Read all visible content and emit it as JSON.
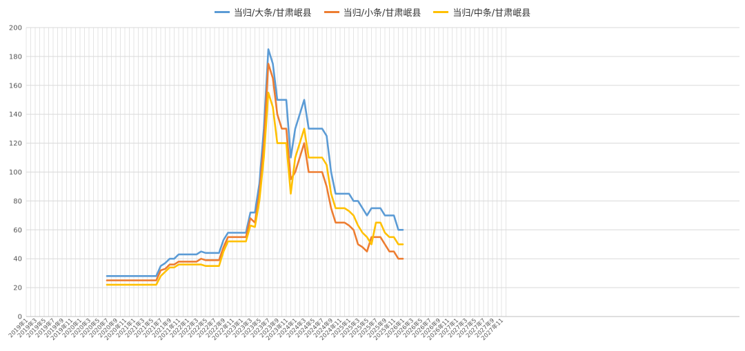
{
  "chart_data": {
    "type": "line",
    "title": "",
    "xlabel": "",
    "ylabel": "",
    "ylim": [
      0,
      200
    ],
    "y_ticks": [
      0,
      20,
      40,
      60,
      80,
      100,
      120,
      140,
      160,
      180,
      200
    ],
    "x_tick_labels": [
      "2019年1",
      "2019年3",
      "2019年5",
      "2019年7",
      "2019年9",
      "2019年11",
      "2020年1",
      "2020年3",
      "2020年5",
      "2020年7",
      "2020年9",
      "2020年11",
      "2021年1",
      "2021年3",
      "2021年5",
      "2021年7",
      "2021年9",
      "2021年11",
      "2022年1",
      "2022年3",
      "2022年5",
      "2022年7",
      "2022年9",
      "2022年11",
      "2023年1",
      "2023年3",
      "2023年5",
      "2023年7",
      "2023年9",
      "2023年11",
      "2024年1",
      "2024年3",
      "2024年5",
      "2024年7",
      "2024年9",
      "2024年11",
      "2025年1",
      "2025年3",
      "2025年5",
      "2025年7",
      "2025年9",
      "2025年11",
      "2026年1",
      "2026年3",
      "2026年5",
      "2026年7",
      "2026年9",
      "2026年11",
      "2027年1",
      "2027年3",
      "2027年5",
      "2027年7",
      "2027年9",
      "2027年11"
    ],
    "legend_position": "top",
    "grid": true,
    "series": [
      {
        "name": "当归/大条/甘肃岷县",
        "color": "#5B9BD5",
        "points": [
          [
            "2020-07",
            28
          ],
          [
            "2020-08",
            28
          ],
          [
            "2020-09",
            28
          ],
          [
            "2020-10",
            28
          ],
          [
            "2020-11",
            28
          ],
          [
            "2020-12",
            28
          ],
          [
            "2021-01",
            28
          ],
          [
            "2021-02",
            28
          ],
          [
            "2021-03",
            28
          ],
          [
            "2021-04",
            28
          ],
          [
            "2021-05",
            28
          ],
          [
            "2021-06",
            28
          ],
          [
            "2021-07",
            35
          ],
          [
            "2021-08",
            37
          ],
          [
            "2021-09",
            40
          ],
          [
            "2021-10",
            40
          ],
          [
            "2021-11",
            43
          ],
          [
            "2021-12",
            43
          ],
          [
            "2022-01",
            43
          ],
          [
            "2022-02",
            43
          ],
          [
            "2022-03",
            43
          ],
          [
            "2022-04",
            45
          ],
          [
            "2022-05",
            44
          ],
          [
            "2022-06",
            44
          ],
          [
            "2022-07",
            44
          ],
          [
            "2022-08",
            44
          ],
          [
            "2022-09",
            53
          ],
          [
            "2022-10",
            58
          ],
          [
            "2022-11",
            58
          ],
          [
            "2022-12",
            58
          ],
          [
            "2023-01",
            58
          ],
          [
            "2023-02",
            58
          ],
          [
            "2023-03",
            72
          ],
          [
            "2023-04",
            72
          ],
          [
            "2023-05",
            92
          ],
          [
            "2023-06",
            130
          ],
          [
            "2023-07",
            185
          ],
          [
            "2023-08",
            175
          ],
          [
            "2023-09",
            150
          ],
          [
            "2023-10",
            150
          ],
          [
            "2023-11",
            150
          ],
          [
            "2023-12",
            110
          ],
          [
            "2024-01",
            130
          ],
          [
            "2024-02",
            140
          ],
          [
            "2024-03",
            150
          ],
          [
            "2024-04",
            130
          ],
          [
            "2024-05",
            130
          ],
          [
            "2024-06",
            130
          ],
          [
            "2024-07",
            130
          ],
          [
            "2024-08",
            125
          ],
          [
            "2024-09",
            100
          ],
          [
            "2024-10",
            85
          ],
          [
            "2024-11",
            85
          ],
          [
            "2024-12",
            85
          ],
          [
            "2025-01",
            85
          ],
          [
            "2025-02",
            80
          ],
          [
            "2025-03",
            80
          ],
          [
            "2025-04",
            75
          ],
          [
            "2025-05",
            70
          ],
          [
            "2025-06",
            75
          ],
          [
            "2025-07",
            75
          ],
          [
            "2025-08",
            75
          ],
          [
            "2025-09",
            70
          ],
          [
            "2025-10",
            70
          ],
          [
            "2025-11",
            70
          ],
          [
            "2025-12",
            60
          ],
          [
            "2026-01",
            60
          ]
        ]
      },
      {
        "name": "当归/小条/甘肃岷县",
        "color": "#ED7D31",
        "points": [
          [
            "2020-07",
            25
          ],
          [
            "2020-08",
            25
          ],
          [
            "2020-09",
            25
          ],
          [
            "2020-10",
            25
          ],
          [
            "2020-11",
            25
          ],
          [
            "2020-12",
            25
          ],
          [
            "2021-01",
            25
          ],
          [
            "2021-02",
            25
          ],
          [
            "2021-03",
            25
          ],
          [
            "2021-04",
            25
          ],
          [
            "2021-05",
            25
          ],
          [
            "2021-06",
            25
          ],
          [
            "2021-07",
            32
          ],
          [
            "2021-08",
            33
          ],
          [
            "2021-09",
            36
          ],
          [
            "2021-10",
            36
          ],
          [
            "2021-11",
            38
          ],
          [
            "2021-12",
            38
          ],
          [
            "2022-01",
            38
          ],
          [
            "2022-02",
            38
          ],
          [
            "2022-03",
            38
          ],
          [
            "2022-04",
            40
          ],
          [
            "2022-05",
            39
          ],
          [
            "2022-06",
            39
          ],
          [
            "2022-07",
            39
          ],
          [
            "2022-08",
            39
          ],
          [
            "2022-09",
            48
          ],
          [
            "2022-10",
            55
          ],
          [
            "2022-11",
            55
          ],
          [
            "2022-12",
            55
          ],
          [
            "2023-01",
            55
          ],
          [
            "2023-02",
            55
          ],
          [
            "2023-03",
            68
          ],
          [
            "2023-04",
            65
          ],
          [
            "2023-05",
            85
          ],
          [
            "2023-06",
            120
          ],
          [
            "2023-07",
            175
          ],
          [
            "2023-08",
            165
          ],
          [
            "2023-09",
            140
          ],
          [
            "2023-10",
            130
          ],
          [
            "2023-11",
            130
          ],
          [
            "2023-12",
            95
          ],
          [
            "2024-01",
            100
          ],
          [
            "2024-02",
            110
          ],
          [
            "2024-03",
            120
          ],
          [
            "2024-04",
            100
          ],
          [
            "2024-05",
            100
          ],
          [
            "2024-06",
            100
          ],
          [
            "2024-07",
            100
          ],
          [
            "2024-08",
            90
          ],
          [
            "2024-09",
            75
          ],
          [
            "2024-10",
            65
          ],
          [
            "2024-11",
            65
          ],
          [
            "2024-12",
            65
          ],
          [
            "2025-01",
            63
          ],
          [
            "2025-02",
            60
          ],
          [
            "2025-03",
            50
          ],
          [
            "2025-04",
            48
          ],
          [
            "2025-05",
            45
          ],
          [
            "2025-06",
            55
          ],
          [
            "2025-07",
            55
          ],
          [
            "2025-08",
            55
          ],
          [
            "2025-09",
            50
          ],
          [
            "2025-10",
            45
          ],
          [
            "2025-11",
            45
          ],
          [
            "2025-12",
            40
          ],
          [
            "2026-01",
            40
          ]
        ]
      },
      {
        "name": "当归/中条/甘肃岷县",
        "color": "#FFC000",
        "points": [
          [
            "2020-07",
            22
          ],
          [
            "2020-08",
            22
          ],
          [
            "2020-09",
            22
          ],
          [
            "2020-10",
            22
          ],
          [
            "2020-11",
            22
          ],
          [
            "2020-12",
            22
          ],
          [
            "2021-01",
            22
          ],
          [
            "2021-02",
            22
          ],
          [
            "2021-03",
            22
          ],
          [
            "2021-04",
            22
          ],
          [
            "2021-05",
            22
          ],
          [
            "2021-06",
            22
          ],
          [
            "2021-07",
            28
          ],
          [
            "2021-08",
            31
          ],
          [
            "2021-09",
            34
          ],
          [
            "2021-10",
            34
          ],
          [
            "2021-11",
            36
          ],
          [
            "2021-12",
            36
          ],
          [
            "2022-01",
            36
          ],
          [
            "2022-02",
            36
          ],
          [
            "2022-03",
            36
          ],
          [
            "2022-04",
            36
          ],
          [
            "2022-05",
            35
          ],
          [
            "2022-06",
            35
          ],
          [
            "2022-07",
            35
          ],
          [
            "2022-08",
            35
          ],
          [
            "2022-09",
            45
          ],
          [
            "2022-10",
            52
          ],
          [
            "2022-11",
            52
          ],
          [
            "2022-12",
            52
          ],
          [
            "2023-01",
            52
          ],
          [
            "2023-02",
            52
          ],
          [
            "2023-03",
            63
          ],
          [
            "2023-04",
            62
          ],
          [
            "2023-05",
            80
          ],
          [
            "2023-06",
            110
          ],
          [
            "2023-07",
            155
          ],
          [
            "2023-08",
            145
          ],
          [
            "2023-09",
            120
          ],
          [
            "2023-10",
            120
          ],
          [
            "2023-11",
            120
          ],
          [
            "2023-12",
            85
          ],
          [
            "2024-01",
            110
          ],
          [
            "2024-02",
            120
          ],
          [
            "2024-03",
            130
          ],
          [
            "2024-04",
            110
          ],
          [
            "2024-05",
            110
          ],
          [
            "2024-06",
            110
          ],
          [
            "2024-07",
            110
          ],
          [
            "2024-08",
            105
          ],
          [
            "2024-09",
            85
          ],
          [
            "2024-10",
            75
          ],
          [
            "2024-11",
            75
          ],
          [
            "2024-12",
            75
          ],
          [
            "2025-01",
            73
          ],
          [
            "2025-02",
            70
          ],
          [
            "2025-03",
            63
          ],
          [
            "2025-04",
            58
          ],
          [
            "2025-05",
            55
          ],
          [
            "2025-06",
            50
          ],
          [
            "2025-07",
            65
          ],
          [
            "2025-08",
            65
          ],
          [
            "2025-09",
            58
          ],
          [
            "2025-10",
            55
          ],
          [
            "2025-11",
            55
          ],
          [
            "2025-12",
            50
          ],
          [
            "2026-01",
            50
          ]
        ]
      }
    ]
  }
}
